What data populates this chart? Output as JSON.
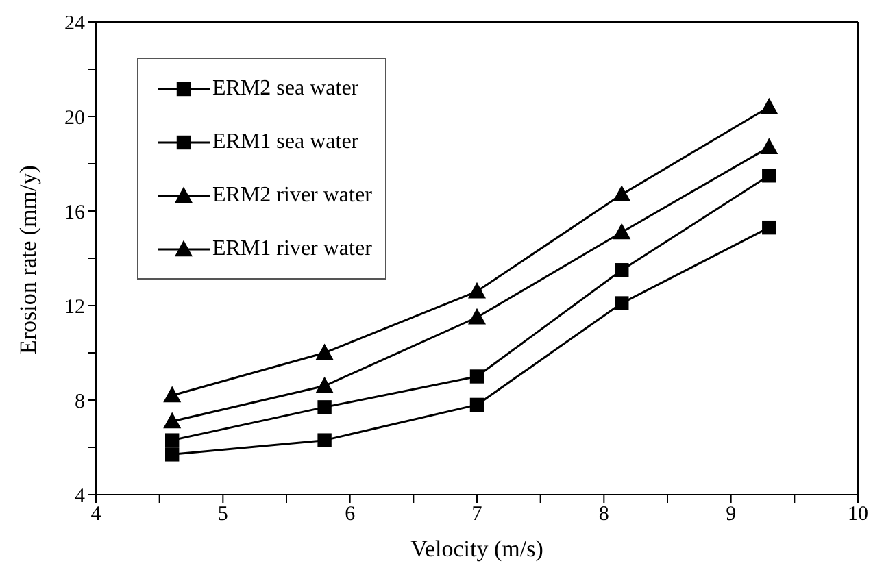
{
  "chart_data": {
    "type": "line",
    "xlabel": "Velocity (m/s)",
    "ylabel": "Erosion rate (mm/y)",
    "x": [
      4.6,
      5.8,
      7,
      8.14,
      9.3
    ],
    "series": [
      {
        "name": "ERM2 sea water",
        "color": "#000000",
        "marker": "square",
        "values": [
          5.7,
          6.3,
          7.8,
          12.1,
          15.3
        ]
      },
      {
        "name": "ERM1 sea water",
        "color": "#000000",
        "marker": "square",
        "values": [
          6.3,
          7.7,
          9.0,
          13.5,
          17.5
        ]
      },
      {
        "name": "ERM2 river water",
        "color": "#000000",
        "marker": "triangle",
        "values": [
          7.1,
          8.6,
          11.5,
          15.1,
          18.7
        ]
      },
      {
        "name": "ERM1 river water",
        "color": "#000000",
        "marker": "triangle",
        "values": [
          8.2,
          10.0,
          12.6,
          16.7,
          20.4
        ]
      }
    ],
    "xlim": [
      4,
      10
    ],
    "xticks": [
      4,
      {
        "value": 4.5,
        "label": null
      },
      5,
      {
        "value": 5.5,
        "label": null
      },
      6,
      {
        "value": 6.5,
        "label": null
      },
      7,
      {
        "value": 7.5,
        "label": null
      },
      8,
      {
        "value": 8.5,
        "label": null
      },
      9,
      {
        "value": 9.5,
        "label": null
      },
      10
    ],
    "ylim": [
      4,
      24
    ],
    "yticks": [
      4,
      {
        "value": 6,
        "label": null
      },
      8,
      {
        "value": 10,
        "label": null
      },
      12,
      {
        "value": 14,
        "label": null
      },
      16,
      {
        "value": 18,
        "label": null
      },
      20,
      {
        "value": 22,
        "label": null
      },
      24
    ],
    "grid": false,
    "legend": "top left",
    "line_style": "solid"
  }
}
